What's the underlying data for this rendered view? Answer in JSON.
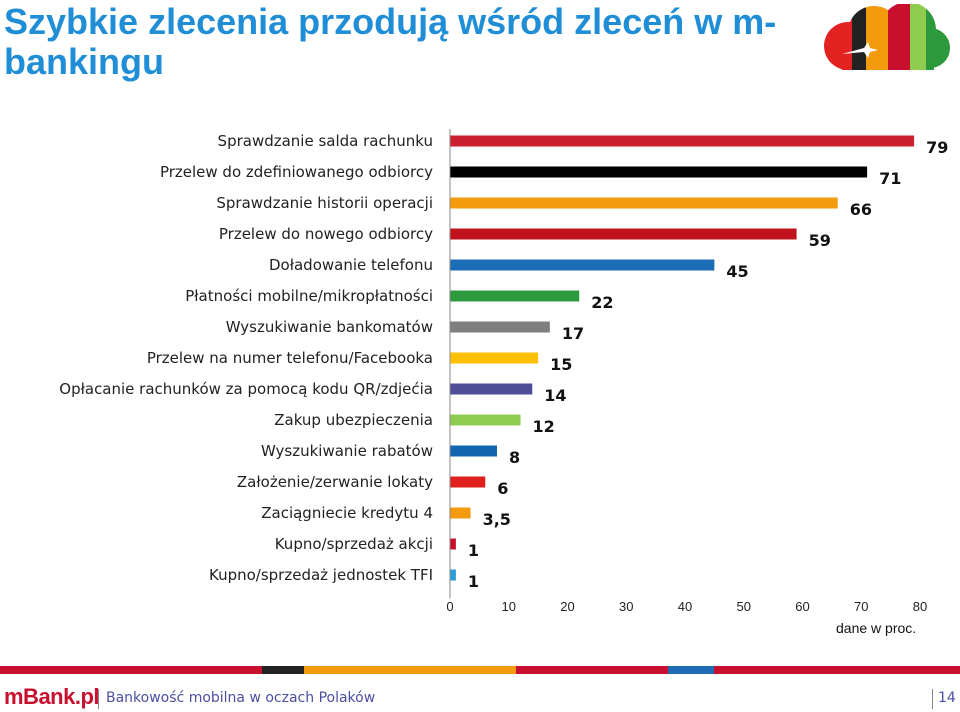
{
  "header": {
    "title": "Szybkie zlecenia przodują wśród zleceń w m-bankingu"
  },
  "chart_data": {
    "type": "bar",
    "orientation": "horizontal",
    "categories": [
      "Sprawdzanie salda rachunku",
      "Przelew do zdefiniowanego odbiorcy",
      "Sprawdzanie historii operacji",
      "Przelew do nowego odbiorcy",
      "Doładowanie telefonu",
      "Płatności mobilne/mikropłatności",
      "Wyszukiwanie bankomatów",
      "Przelew na numer telefonu/Facebooka",
      "Opłacanie rachunków za pomocą kodu QR/zdjećia",
      "Zakup ubezpieczenia",
      "Wyszukiwanie rabatów",
      "Założenie/zerwanie lokaty",
      "Zaciągniecie kredytu 4",
      "Kupno/sprzedaż akcji",
      "Kupno/sprzedaż jednostek TFI"
    ],
    "values": [
      79,
      71,
      66,
      59,
      45,
      22,
      17,
      15,
      14,
      12,
      8,
      6,
      3.5,
      1,
      1
    ],
    "value_labels": [
      "79",
      "71",
      "66",
      "59",
      "45",
      "22",
      "17",
      "15",
      "14",
      "12",
      "8",
      "6",
      "3,5",
      "1",
      "1"
    ],
    "colors": [
      "#cc1f2f",
      "#000000",
      "#f39a0d",
      "#c0121c",
      "#1c6db5",
      "#2c9a3c",
      "#7f7f7f",
      "#ffc000",
      "#4e4e96",
      "#8ecb4f",
      "#1465b0",
      "#e0201c",
      "#f39a0d",
      "#c8102e",
      "#2a9fd8"
    ],
    "xlim": [
      0,
      80
    ],
    "xticks": [
      "0",
      "10",
      "20",
      "30",
      "40",
      "50",
      "60",
      "70",
      "80"
    ],
    "note": "dane w proc.",
    "grid": false
  },
  "stripe_colors": [
    "#c8102e",
    "#222222",
    "#f39a0d",
    "#c8102e",
    "#1c6db5",
    "#c8102e"
  ],
  "footer": {
    "brand": "mBank.pl",
    "subtitle": "Bankowość mobilna w oczach Polaków",
    "page": "14"
  }
}
